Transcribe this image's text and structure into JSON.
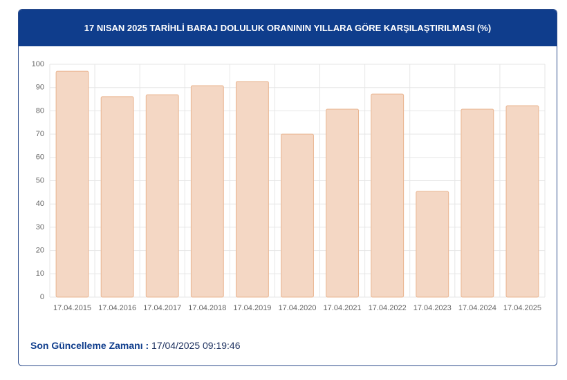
{
  "chart_data": {
    "type": "bar",
    "title": "17 NISAN 2025 TARİHLİ BARAJ DOLULUK ORANININ YILLARA GÖRE KARŞILAŞTIRILMASI (%)",
    "categories": [
      "17.04.2015",
      "17.04.2016",
      "17.04.2017",
      "17.04.2018",
      "17.04.2019",
      "17.04.2020",
      "17.04.2021",
      "17.04.2022",
      "17.04.2023",
      "17.04.2024",
      "17.04.2025"
    ],
    "values": [
      97.0,
      86.1,
      86.9,
      90.8,
      92.6,
      70.0,
      80.7,
      87.2,
      45.4,
      80.7,
      82.2
    ],
    "color": "#f4d7c4",
    "edge_color": "#e9b48f",
    "ylim": [
      0,
      100
    ],
    "yticks": [
      0,
      10,
      20,
      30,
      40,
      50,
      60,
      70,
      80,
      90,
      100
    ],
    "grid": true
  },
  "footer": {
    "label": "Son Güncelleme Zamanı :",
    "value": "17/04/2025 09:19:46"
  }
}
